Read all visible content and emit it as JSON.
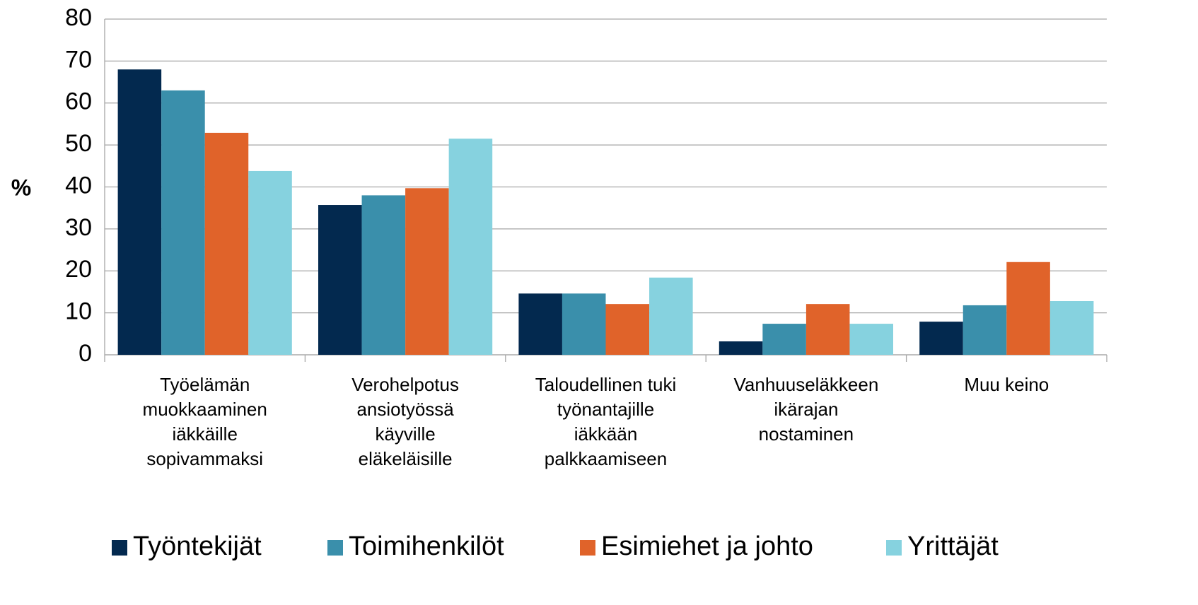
{
  "chart_data": {
    "type": "bar",
    "y_label": "%",
    "categories": [
      "Työelämän\nmuokkaaminen\niäkkäille\nsopivammaksi",
      "Verohelpotus\nansiotyössä\nkäyville\neläkeläisille",
      "Taloudellinen tuki\ntyönantajille\niäkkään\npalkkaamiseen",
      "Vanhuuseläkkeen\nikärajan\nnostaminen",
      "Muu keino"
    ],
    "series": [
      {
        "name": "Työntekijät",
        "color": "#03294f",
        "values": [
          68,
          35.7,
          14.6,
          3.2,
          7.9
        ]
      },
      {
        "name": "Toimihenkilöt",
        "color": "#3a8fab",
        "values": [
          63,
          38,
          14.6,
          7.4,
          11.8
        ]
      },
      {
        "name": "Esimiehet ja johto",
        "color": "#e0632a",
        "values": [
          52.9,
          39.7,
          12.1,
          12.1,
          22.1
        ]
      },
      {
        "name": "Yrittäjät",
        "color": "#86d2df",
        "values": [
          43.8,
          51.5,
          18.4,
          7.4,
          12.8
        ]
      }
    ],
    "ylim": [
      0,
      80
    ],
    "yticks": [
      0,
      10,
      20,
      30,
      40,
      50,
      60,
      70,
      80
    ],
    "grid": true,
    "legend": "bottom"
  }
}
